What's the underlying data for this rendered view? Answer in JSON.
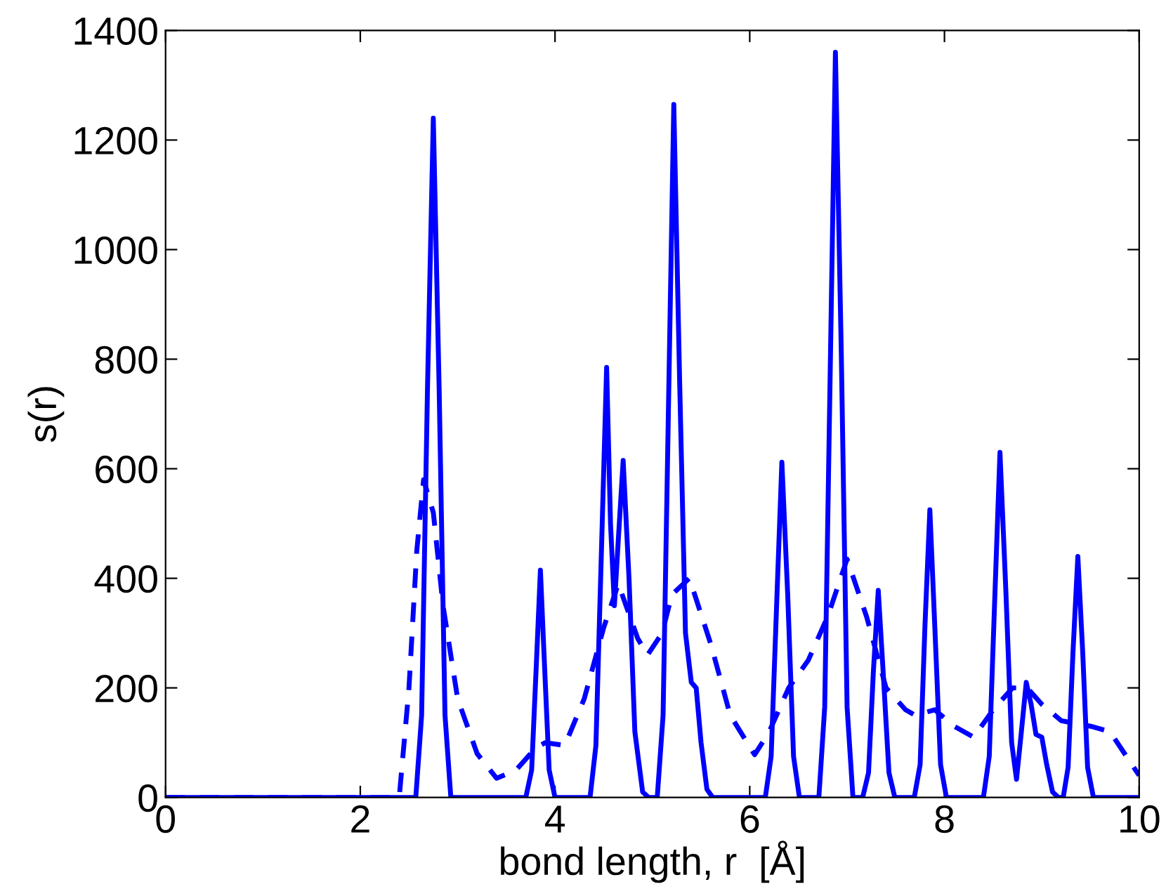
{
  "chart_data": {
    "type": "line",
    "xlabel": "bond length, r  [Å]",
    "ylabel": "s(r)",
    "xlim": [
      0,
      10
    ],
    "ylim": [
      0,
      1400
    ],
    "xticks": [
      0,
      2,
      4,
      6,
      8,
      10
    ],
    "yticks": [
      0,
      200,
      400,
      600,
      800,
      1000,
      1200,
      1400
    ],
    "grid": false,
    "legend": false,
    "series": [
      {
        "color": "#0000ff",
        "line_style": "solid",
        "x": [
          0,
          2.57,
          2.63,
          2.69,
          2.75,
          2.81,
          2.87,
          2.93,
          3.7,
          3.76,
          3.81,
          3.85,
          3.89,
          3.94,
          4.0,
          4.36,
          4.42,
          4.48,
          4.53,
          4.57,
          4.61,
          4.65,
          4.7,
          4.76,
          4.82,
          4.9,
          4.96,
          5.05,
          5.11,
          5.17,
          5.22,
          5.28,
          5.34,
          5.4,
          5.45,
          5.5,
          5.56,
          5.62,
          6.16,
          6.22,
          6.28,
          6.33,
          6.39,
          6.45,
          6.51,
          6.71,
          6.77,
          6.83,
          6.88,
          6.94,
          7.0,
          7.06,
          7.16,
          7.22,
          7.27,
          7.32,
          7.37,
          7.43,
          7.49,
          7.69,
          7.75,
          7.8,
          7.85,
          7.9,
          7.96,
          8.02,
          8.4,
          8.46,
          8.52,
          8.57,
          8.63,
          8.69,
          8.74,
          8.79,
          8.84,
          8.89,
          8.94,
          9.0,
          9.05,
          9.11,
          9.17,
          9.22,
          9.27,
          9.32,
          9.37,
          9.42,
          9.47,
          9.53,
          10
        ],
        "values": [
          0,
          0,
          150,
          745,
          1240,
          745,
          150,
          0,
          0,
          50,
          250,
          415,
          250,
          50,
          0,
          0,
          95,
          470,
          785,
          500,
          350,
          470,
          615,
          400,
          120,
          10,
          0,
          0,
          150,
          760,
          1265,
          760,
          300,
          210,
          200,
          100,
          15,
          0,
          0,
          75,
          370,
          612,
          370,
          75,
          0,
          0,
          165,
          815,
          1360,
          815,
          165,
          0,
          0,
          45,
          230,
          378,
          230,
          45,
          0,
          0,
          60,
          315,
          525,
          315,
          60,
          0,
          0,
          75,
          380,
          630,
          380,
          100,
          33,
          120,
          210,
          170,
          115,
          110,
          60,
          10,
          0,
          0,
          55,
          265,
          440,
          265,
          55,
          0,
          0
        ]
      },
      {
        "color": "#0000ff",
        "line_style": "dashed",
        "x": [
          0,
          2.4,
          2.5,
          2.58,
          2.65,
          2.75,
          2.85,
          3.0,
          3.2,
          3.4,
          3.6,
          3.8,
          3.9,
          4.1,
          4.3,
          4.5,
          4.65,
          4.85,
          4.95,
          5.1,
          5.2,
          5.38,
          5.6,
          5.8,
          6.05,
          6.2,
          6.4,
          6.6,
          6.8,
          7.0,
          7.2,
          7.4,
          7.6,
          7.7,
          7.9,
          8.1,
          8.3,
          8.5,
          8.7,
          8.85,
          9.0,
          9.2,
          9.5,
          9.7,
          10
        ],
        "values": [
          0,
          0,
          200,
          450,
          580,
          520,
          350,
          180,
          80,
          35,
          50,
          90,
          100,
          95,
          180,
          310,
          390,
          290,
          260,
          300,
          370,
          400,
          280,
          150,
          78,
          120,
          200,
          250,
          330,
          435,
          330,
          200,
          160,
          150,
          160,
          130,
          110,
          160,
          200,
          200,
          170,
          140,
          130,
          120,
          40
        ]
      }
    ]
  }
}
